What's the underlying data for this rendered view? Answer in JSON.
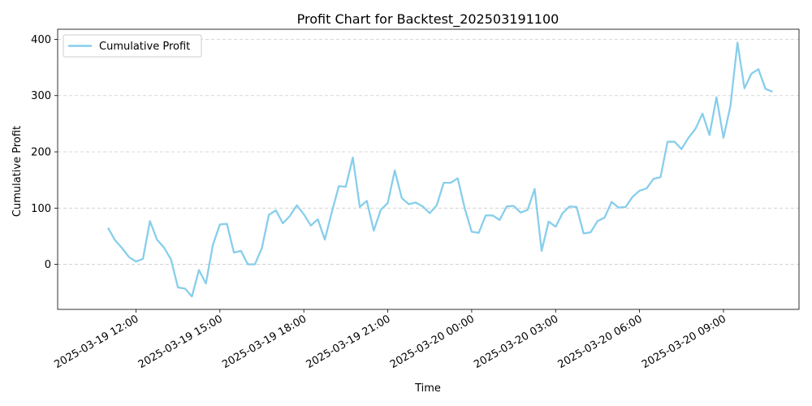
{
  "chart_data": {
    "type": "line",
    "title": "Profit Chart for Backtest_202503191100",
    "xlabel": "Time",
    "ylabel": "Cumulative Profit",
    "ylim": [
      -80,
      418
    ],
    "yticks": [
      0,
      100,
      200,
      300,
      400
    ],
    "xlim_hours": [
      -1.8,
      24.7
    ],
    "xticks": [
      {
        "label": "2025-03-19 12:00",
        "hour": 1
      },
      {
        "label": "2025-03-19 15:00",
        "hour": 4
      },
      {
        "label": "2025-03-19 18:00",
        "hour": 7
      },
      {
        "label": "2025-03-19 21:00",
        "hour": 10
      },
      {
        "label": "2025-03-20 00:00",
        "hour": 13
      },
      {
        "label": "2025-03-20 03:00",
        "hour": 16
      },
      {
        "label": "2025-03-20 06:00",
        "hour": 19
      },
      {
        "label": "2025-03-20 09:00",
        "hour": 22
      }
    ],
    "grid": "y-dashed",
    "legend_position": "top-left",
    "series": [
      {
        "name": "Cumulative Profit",
        "color": "#87ceeb",
        "x_start_hour": 0,
        "x_step_hours": 0.25,
        "values": [
          65,
          43,
          29,
          13,
          5,
          10,
          77,
          44,
          30,
          9,
          -41,
          -43,
          -57,
          -10,
          -34,
          35,
          71,
          72,
          21,
          24,
          0,
          0,
          29,
          88,
          96,
          73,
          86,
          105,
          89,
          69,
          80,
          44,
          93,
          139,
          138,
          190,
          102,
          113,
          60,
          97,
          109,
          167,
          118,
          107,
          110,
          103,
          91,
          105,
          145,
          145,
          153,
          100,
          58,
          56,
          87,
          87,
          79,
          103,
          104,
          92,
          97,
          134,
          24,
          76,
          67,
          91,
          103,
          102,
          55,
          57,
          77,
          83,
          111,
          101,
          102,
          120,
          131,
          135,
          152,
          155,
          218,
          218,
          205,
          225,
          241,
          268,
          230,
          297,
          225,
          282,
          394,
          313,
          339,
          347,
          312,
          307
        ]
      }
    ]
  }
}
